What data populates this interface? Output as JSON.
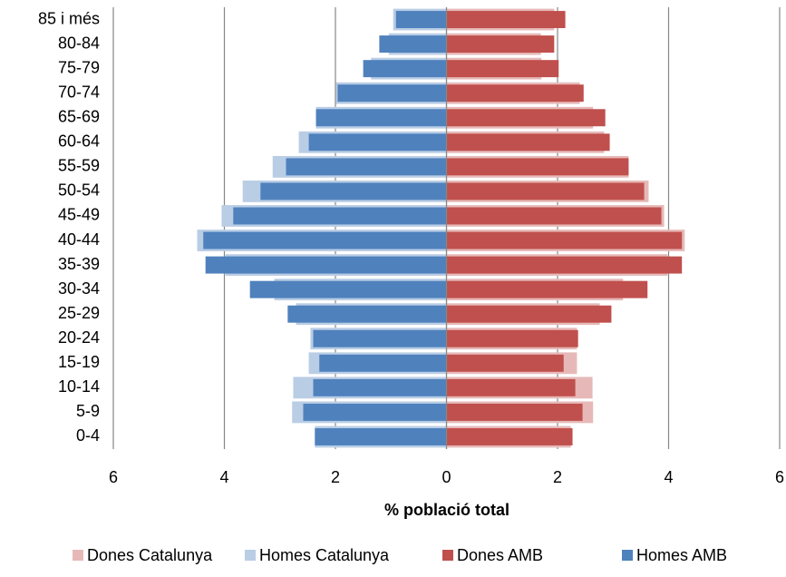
{
  "chart_data": {
    "type": "pyramid",
    "x_label": "% població total",
    "categories": [
      "0-4",
      "5-9",
      "10-14",
      "15-19",
      "20-24",
      "25-29",
      "30-34",
      "35-39",
      "40-44",
      "45-49",
      "50-54",
      "55-59",
      "60-64",
      "65-69",
      "70-74",
      "75-79",
      "80-84",
      "85 i més"
    ],
    "series": [
      {
        "name": "Dones Catalunya",
        "color": "#e6b9b8",
        "values": [
          2.24,
          2.64,
          2.63,
          2.35,
          2.35,
          2.76,
          3.18,
          3.98,
          4.29,
          3.92,
          3.64,
          3.28,
          2.84,
          2.64,
          2.4,
          1.71,
          1.7,
          1.94
        ]
      },
      {
        "name": "Homes Catalunya",
        "color": "#b9cde5",
        "values": [
          -2.37,
          -2.78,
          -2.76,
          -2.48,
          -2.45,
          -2.71,
          -3.1,
          -3.98,
          -4.49,
          -4.05,
          -3.67,
          -3.13,
          -2.66,
          -2.35,
          -1.99,
          -1.36,
          -1.04,
          -0.96
        ]
      },
      {
        "name": "Dones AMB",
        "color": "#c0504d",
        "values": [
          2.27,
          2.45,
          2.32,
          2.11,
          2.37,
          2.97,
          3.62,
          4.24,
          4.24,
          3.87,
          3.56,
          3.28,
          2.94,
          2.86,
          2.47,
          2.02,
          1.94,
          2.14
        ]
      },
      {
        "name": "Homes AMB",
        "color": "#4f81bd",
        "values": [
          -2.37,
          -2.58,
          -2.4,
          -2.29,
          -2.4,
          -2.86,
          -3.54,
          -4.34,
          -4.38,
          -3.84,
          -3.35,
          -2.89,
          -2.48,
          -2.35,
          -1.96,
          -1.5,
          -1.21,
          -0.91
        ]
      }
    ],
    "xlim": [
      -6,
      6
    ],
    "xticks": [
      {
        "value": -6,
        "label": "6"
      },
      {
        "value": -4,
        "label": "4"
      },
      {
        "value": -2,
        "label": "2"
      },
      0,
      2,
      4,
      6
    ],
    "grid": true,
    "legend": "bottom"
  }
}
